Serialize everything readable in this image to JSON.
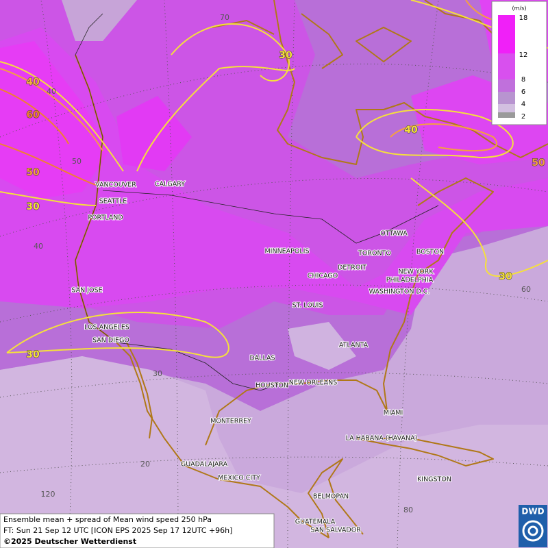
{
  "map": {
    "graticule_labels": [
      "70",
      "50",
      "40",
      "40",
      "30",
      "20",
      "120",
      "60",
      "80"
    ],
    "contour_labels": [
      "30",
      "40",
      "60",
      "50",
      "30",
      "30",
      "40",
      "50",
      "30"
    ],
    "cities": [
      "VANCOUVER",
      "CALGARY",
      "SEATTLE",
      "PORTLAND",
      "MINNEAPOLIS",
      "TORONTO",
      "OTTAWA",
      "DETROIT",
      "CHICAGO",
      "BOSTON",
      "NEW YORK",
      "PHILADELPHIA",
      "WASHINGTON D.C.",
      "SAN JOSE",
      "ST. LOUIS",
      "LOS ANGELES",
      "SAN DIEGO",
      "ATLANTA",
      "DALLAS",
      "HOUSTON",
      "NEW ORLEANS",
      "MIAMI",
      "MONTERREY",
      "LA HABANA (HAVANA)",
      "GUADALAJARA",
      "MEXICO CITY",
      "KINGSTON",
      "BELMOPAN",
      "GUATEMALA",
      "SAN SALVADOR"
    ],
    "legend": {
      "unit": "(m/s)",
      "ticks": [
        18,
        12,
        8,
        6,
        4,
        2
      ]
    },
    "footer": [
      "Ensemble mean + spread of Mean wind speed 250 hPa",
      "FT: Sun 21 Sep 12 UTC [ICON EPS 2025 Sep 17 12UTC +96h]",
      "©2025 Deutscher Wetterdienst"
    ],
    "logo": "DWD"
  }
}
